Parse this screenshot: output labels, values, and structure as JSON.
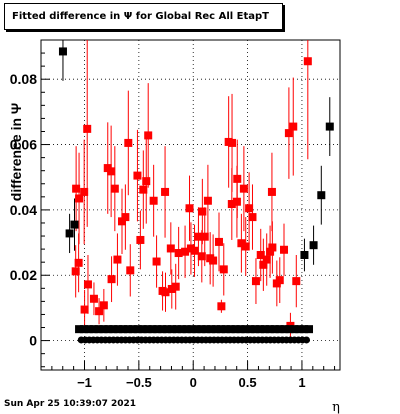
{
  "title": "Fitted difference in Ψ  for Global Rec All EtapT",
  "timestamp": "Sun Apr 25 10:39:07 2021",
  "chart_data": {
    "type": "scatter",
    "title": "Fitted difference in Ψ  for Global Rec All EtapT",
    "xlabel": "η",
    "ylabel": "difference in Ψ",
    "xlim": [
      -1.4,
      1.35
    ],
    "ylim": [
      -0.009,
      0.092
    ],
    "x_ticks": [
      -1,
      -0.5,
      0,
      0.5,
      1
    ],
    "x_tick_labels": [
      "−1",
      "−0.5",
      "0",
      "0.5",
      "1"
    ],
    "y_ticks": [
      0,
      0.02,
      0.04,
      0.06,
      0.08
    ],
    "y_tick_labels": [
      "0",
      "0.02",
      "0.04",
      "0.06",
      "0.08"
    ],
    "grid": true,
    "series": [
      {
        "color": "#ff0000",
        "marker": "square-filled",
        "points": [
          {
            "x": -1.077,
            "y": 0.0465,
            "err": 0.013
          },
          {
            "x": -1.05,
            "y": 0.0435,
            "err": 0.014
          },
          {
            "x": -1.003,
            "y": 0.0455,
            "err": 0.016
          },
          {
            "x": -0.975,
            "y": 0.0648,
            "err": 0.03
          },
          {
            "x": -0.786,
            "y": 0.0528,
            "err": 0.014
          },
          {
            "x": -0.721,
            "y": 0.0465,
            "err": 0.013
          },
          {
            "x": -0.597,
            "y": 0.0605,
            "err": 0.016
          },
          {
            "x": -0.414,
            "y": 0.0628,
            "err": 0.016
          },
          {
            "x": -0.259,
            "y": 0.0455,
            "err": 0.014
          },
          {
            "x": -0.034,
            "y": 0.0405,
            "err": 0.01
          },
          {
            "x": 0.084,
            "y": 0.0395,
            "err": 0.01
          },
          {
            "x": 0.135,
            "y": 0.0428,
            "err": 0.011
          },
          {
            "x": 0.259,
            "y": 0.0105,
            "err": 0.002
          },
          {
            "x": 0.326,
            "y": 0.0608,
            "err": 0.014
          },
          {
            "x": 0.357,
            "y": 0.0605,
            "err": 0.015
          },
          {
            "x": 0.405,
            "y": 0.0495,
            "err": 0.012
          },
          {
            "x": 0.466,
            "y": 0.0465,
            "err": 0.013
          },
          {
            "x": 0.724,
            "y": 0.0455,
            "err": 0.012
          },
          {
            "x": 0.88,
            "y": 0.0635,
            "err": 0.014
          },
          {
            "x": 0.92,
            "y": 0.0655,
            "err": 0.015
          },
          {
            "x": 1.054,
            "y": 0.0855,
            "err": 0.03
          },
          {
            "x": -1.081,
            "y": 0.0212,
            "err": 0.008
          },
          {
            "x": -1.054,
            "y": 0.0238,
            "err": 0.009
          },
          {
            "x": -0.999,
            "y": 0.0095,
            "err": 0.006
          },
          {
            "x": -0.968,
            "y": 0.0172,
            "err": 0.009
          },
          {
            "x": -0.913,
            "y": 0.0128,
            "err": 0.005
          },
          {
            "x": -0.866,
            "y": 0.009,
            "err": 0.004
          },
          {
            "x": -0.822,
            "y": 0.0108,
            "err": 0.005
          },
          {
            "x": -0.755,
            "y": 0.0518,
            "err": 0.014
          },
          {
            "x": -0.751,
            "y": 0.0188,
            "err": 0.007
          },
          {
            "x": -0.697,
            "y": 0.0248,
            "err": 0.008
          },
          {
            "x": -0.655,
            "y": 0.0365,
            "err": 0.01
          },
          {
            "x": -0.624,
            "y": 0.0378,
            "err": 0.01
          },
          {
            "x": -0.579,
            "y": 0.0215,
            "err": 0.008
          },
          {
            "x": -0.513,
            "y": 0.0505,
            "err": 0.014
          },
          {
            "x": -0.486,
            "y": 0.0308,
            "err": 0.009
          },
          {
            "x": -0.459,
            "y": 0.0462,
            "err": 0.012
          },
          {
            "x": -0.432,
            "y": 0.0488,
            "err": 0.013
          },
          {
            "x": -0.337,
            "y": 0.0242,
            "err": 0.008
          },
          {
            "x": -0.364,
            "y": 0.0428,
            "err": 0.011
          },
          {
            "x": -0.282,
            "y": 0.0152,
            "err": 0.006
          },
          {
            "x": -0.255,
            "y": 0.0148,
            "err": 0.006
          },
          {
            "x": -0.206,
            "y": 0.0282,
            "err": 0.008
          },
          {
            "x": -0.197,
            "y": 0.0158,
            "err": 0.006
          },
          {
            "x": -0.161,
            "y": 0.0165,
            "err": 0.007
          },
          {
            "x": -0.134,
            "y": 0.0268,
            "err": 0.008
          },
          {
            "x": -0.075,
            "y": 0.0272,
            "err": 0.008
          },
          {
            "x": -0.021,
            "y": 0.0282,
            "err": 0.008
          },
          {
            "x": 0.012,
            "y": 0.0275,
            "err": 0.008
          },
          {
            "x": 0.048,
            "y": 0.0318,
            "err": 0.009
          },
          {
            "x": 0.079,
            "y": 0.0258,
            "err": 0.008
          },
          {
            "x": 0.106,
            "y": 0.0318,
            "err": 0.009
          },
          {
            "x": 0.156,
            "y": 0.0252,
            "err": 0.008
          },
          {
            "x": 0.183,
            "y": 0.0245,
            "err": 0.008
          },
          {
            "x": 0.237,
            "y": 0.0302,
            "err": 0.009
          },
          {
            "x": 0.281,
            "y": 0.0218,
            "err": 0.008
          },
          {
            "x": 0.355,
            "y": 0.0418,
            "err": 0.011
          },
          {
            "x": 0.402,
            "y": 0.0425,
            "err": 0.011
          },
          {
            "x": 0.443,
            "y": 0.0298,
            "err": 0.009
          },
          {
            "x": 0.483,
            "y": 0.0288,
            "err": 0.009
          },
          {
            "x": 0.514,
            "y": 0.0405,
            "err": 0.011
          },
          {
            "x": 0.545,
            "y": 0.0378,
            "err": 0.01
          },
          {
            "x": 0.577,
            "y": 0.0182,
            "err": 0.007
          },
          {
            "x": 0.621,
            "y": 0.0262,
            "err": 0.008
          },
          {
            "x": 0.645,
            "y": 0.0232,
            "err": 0.008
          },
          {
            "x": 0.676,
            "y": 0.0248,
            "err": 0.008
          },
          {
            "x": 0.707,
            "y": 0.0272,
            "err": 0.008
          },
          {
            "x": 0.728,
            "y": 0.0285,
            "err": 0.008
          },
          {
            "x": 0.769,
            "y": 0.0175,
            "err": 0.007
          },
          {
            "x": 0.796,
            "y": 0.0185,
            "err": 0.007
          },
          {
            "x": 0.835,
            "y": 0.0278,
            "err": 0.008
          },
          {
            "x": 0.894,
            "y": 0.0045,
            "err": 0.004
          },
          {
            "x": 0.948,
            "y": 0.0182,
            "err": 0.008
          }
        ]
      },
      {
        "color": "#000000",
        "marker": "square-filled",
        "points": [
          {
            "x": -1.198,
            "y": 0.0885,
            "err": 0.009
          },
          {
            "x": -1.137,
            "y": 0.0328,
            "err": 0.006
          },
          {
            "x": -1.092,
            "y": 0.0355,
            "err": 0.008
          },
          {
            "x": 1.023,
            "y": 0.0262,
            "err": 0.005
          },
          {
            "x": 1.107,
            "y": 0.0292,
            "err": 0.006
          },
          {
            "x": 1.178,
            "y": 0.0445,
            "err": 0.009
          },
          {
            "x": 1.256,
            "y": 0.0655,
            "err": 0.009
          }
        ]
      },
      {
        "color": "#000000",
        "marker": "square-filled",
        "x_start": -1.05,
        "x_end": 1.1,
        "x_step": 0.045,
        "y": 0.0035
      },
      {
        "color": "#000000",
        "marker": "circle-filled",
        "x_start": -1.03,
        "x_end": 1.06,
        "x_step": 0.037,
        "y": 0.0002
      }
    ]
  }
}
